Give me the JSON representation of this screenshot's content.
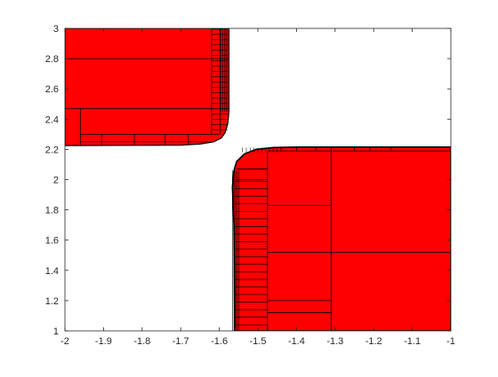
{
  "chart_data": {
    "type": "area",
    "title": "",
    "xlabel": "",
    "ylabel": "",
    "xlim": [
      -2,
      -1
    ],
    "ylim": [
      1,
      3
    ],
    "x_ticks": [
      "-2",
      "-1.9",
      "-1.8",
      "-1.7",
      "-1.6",
      "-1.5",
      "-1.4",
      "-1.3",
      "-1.2",
      "-1.1",
      "-1"
    ],
    "y_ticks": [
      "1",
      "1.2",
      "1.4",
      "1.6",
      "1.8",
      "2",
      "2.2",
      "2.4",
      "2.6",
      "2.8",
      "3"
    ],
    "grid": false,
    "colors": {
      "fill": "#ff0000",
      "edge": "#000000",
      "axis": "#262626"
    },
    "regions": [
      {
        "x0": -2.0,
        "x1": -1.575,
        "y_bottom": 2.225,
        "y_top": 3.0,
        "boundary": [
          [
            -2.0,
            2.225
          ],
          [
            -1.7,
            2.228
          ],
          [
            -1.65,
            2.235
          ],
          [
            -1.615,
            2.25
          ],
          [
            -1.595,
            2.275
          ],
          [
            -1.585,
            2.31
          ],
          [
            -1.578,
            2.37
          ],
          [
            -1.575,
            2.45
          ],
          [
            -1.575,
            3.0
          ]
        ]
      },
      {
        "x0": -1.575,
        "x1": -1.0,
        "y_bottom": 1.0,
        "y_top": 2.215,
        "boundary": [
          [
            -1.56,
            1.0
          ],
          [
            -1.562,
            1.7
          ],
          [
            -1.566,
            1.95
          ],
          [
            -1.562,
            2.06
          ],
          [
            -1.555,
            2.12
          ],
          [
            -1.535,
            2.17
          ],
          [
            -1.505,
            2.2
          ],
          [
            -1.46,
            2.212
          ],
          [
            -1.4,
            2.215
          ],
          [
            -1.0,
            2.215
          ]
        ]
      }
    ]
  }
}
